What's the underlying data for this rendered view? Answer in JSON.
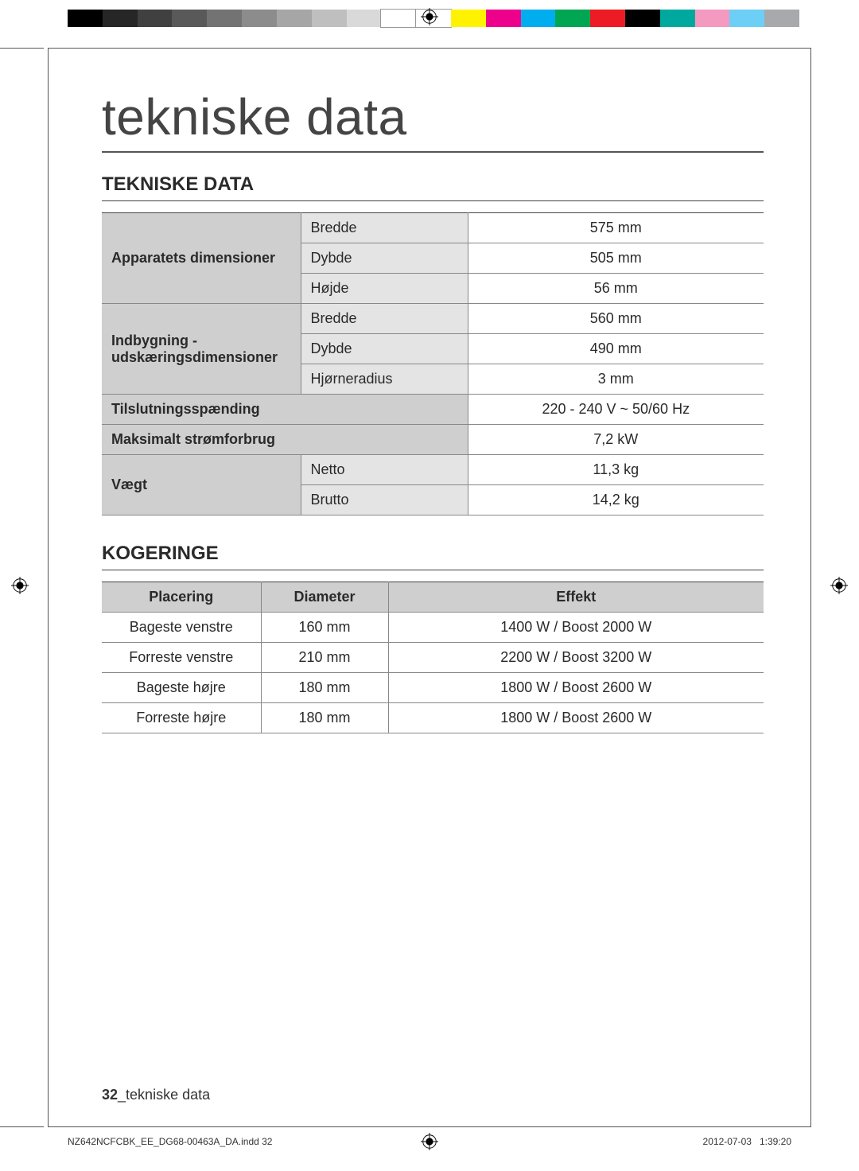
{
  "colors": {
    "label_bg": "#cfcfcf",
    "sub_bg": "#e4e4e4",
    "swatches": [
      "#000000",
      "#262626",
      "#404040",
      "#595959",
      "#737373",
      "#8c8c8c",
      "#a6a6a6",
      "#bfbfbf",
      "#d9d9d9",
      "#ffffff",
      "#ffffff",
      "#fff200",
      "#ec008c",
      "#00aeef",
      "#00a651",
      "#ed1c24",
      "#000000",
      "#00a99d",
      "#f49ac1",
      "#6dcff6",
      "#a7a9ac"
    ]
  },
  "title": "tekniske data",
  "section1": {
    "heading": "TEKNISKE DATA",
    "rows": [
      {
        "label": "Apparatets dimensioner",
        "sub": "Bredde",
        "val": "575 mm"
      },
      {
        "sub": "Dybde",
        "val": "505 mm"
      },
      {
        "sub": "Højde",
        "val": "56 mm"
      },
      {
        "label": "Indbygning - udskæringsdimensioner",
        "sub": "Bredde",
        "val": "560 mm"
      },
      {
        "sub": "Dybde",
        "val": "490 mm"
      },
      {
        "sub": "Hjørneradius",
        "val": "3 mm"
      },
      {
        "label": "Tilslutningsspænding",
        "val": "220 - 240 V ~ 50/60 Hz"
      },
      {
        "label": "Maksimalt strømforbrug",
        "val": "7,2 kW"
      },
      {
        "label": "Vægt",
        "sub": "Netto",
        "val": "11,3 kg"
      },
      {
        "sub": "Brutto",
        "val": "14,2 kg"
      }
    ]
  },
  "section2": {
    "heading": "KOGERINGE",
    "headers": [
      "Placering",
      "Diameter",
      "Effekt"
    ],
    "rows": [
      [
        "Bageste venstre",
        "160 mm",
        "1400 W / Boost 2000 W"
      ],
      [
        "Forreste venstre",
        "210 mm",
        "2200 W / Boost 3200 W"
      ],
      [
        "Bageste højre",
        "180 mm",
        "1800 W / Boost 2600 W"
      ],
      [
        "Forreste højre",
        "180 mm",
        "1800 W / Boost 2600 W"
      ]
    ]
  },
  "footer": {
    "page": "32",
    "label": "tekniske data"
  },
  "print": {
    "file": "NZ642NCFCBK_EE_DG68-00463A_DA.indd   32",
    "date": "2012-07-03",
    "time": "1:39:20"
  }
}
